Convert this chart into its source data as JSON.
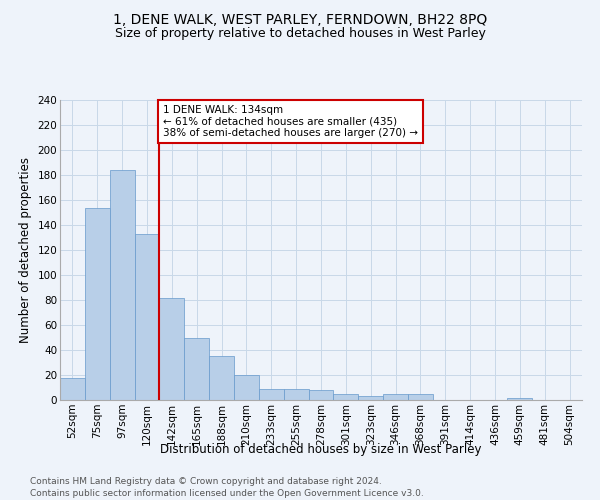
{
  "title": "1, DENE WALK, WEST PARLEY, FERNDOWN, BH22 8PQ",
  "subtitle": "Size of property relative to detached houses in West Parley",
  "xlabel": "Distribution of detached houses by size in West Parley",
  "ylabel": "Number of detached properties",
  "footnote1": "Contains HM Land Registry data © Crown copyright and database right 2024.",
  "footnote2": "Contains public sector information licensed under the Open Government Licence v3.0.",
  "bin_labels": [
    "52sqm",
    "75sqm",
    "97sqm",
    "120sqm",
    "142sqm",
    "165sqm",
    "188sqm",
    "210sqm",
    "233sqm",
    "255sqm",
    "278sqm",
    "301sqm",
    "323sqm",
    "346sqm",
    "368sqm",
    "391sqm",
    "414sqm",
    "436sqm",
    "459sqm",
    "481sqm",
    "504sqm"
  ],
  "bar_values": [
    18,
    154,
    184,
    133,
    82,
    50,
    35,
    20,
    9,
    9,
    8,
    5,
    3,
    5,
    5,
    0,
    0,
    0,
    2,
    0,
    0
  ],
  "bar_color": "#b8cfe8",
  "bar_edge_color": "#6699cc",
  "grid_color": "#c8d8e8",
  "vline_index": 3,
  "annotation_text": "1 DENE WALK: 134sqm\n← 61% of detached houses are smaller (435)\n38% of semi-detached houses are larger (270) →",
  "annotation_box_color": "#ffffff",
  "annotation_edge_color": "#cc0000",
  "vline_color": "#cc0000",
  "ylim": [
    0,
    240
  ],
  "yticks": [
    0,
    20,
    40,
    60,
    80,
    100,
    120,
    140,
    160,
    180,
    200,
    220,
    240
  ],
  "title_fontsize": 10,
  "subtitle_fontsize": 9,
  "axis_label_fontsize": 8.5,
  "tick_fontsize": 7.5,
  "annotation_fontsize": 7.5,
  "footnote_fontsize": 6.5,
  "background_color": "#eef3fa"
}
